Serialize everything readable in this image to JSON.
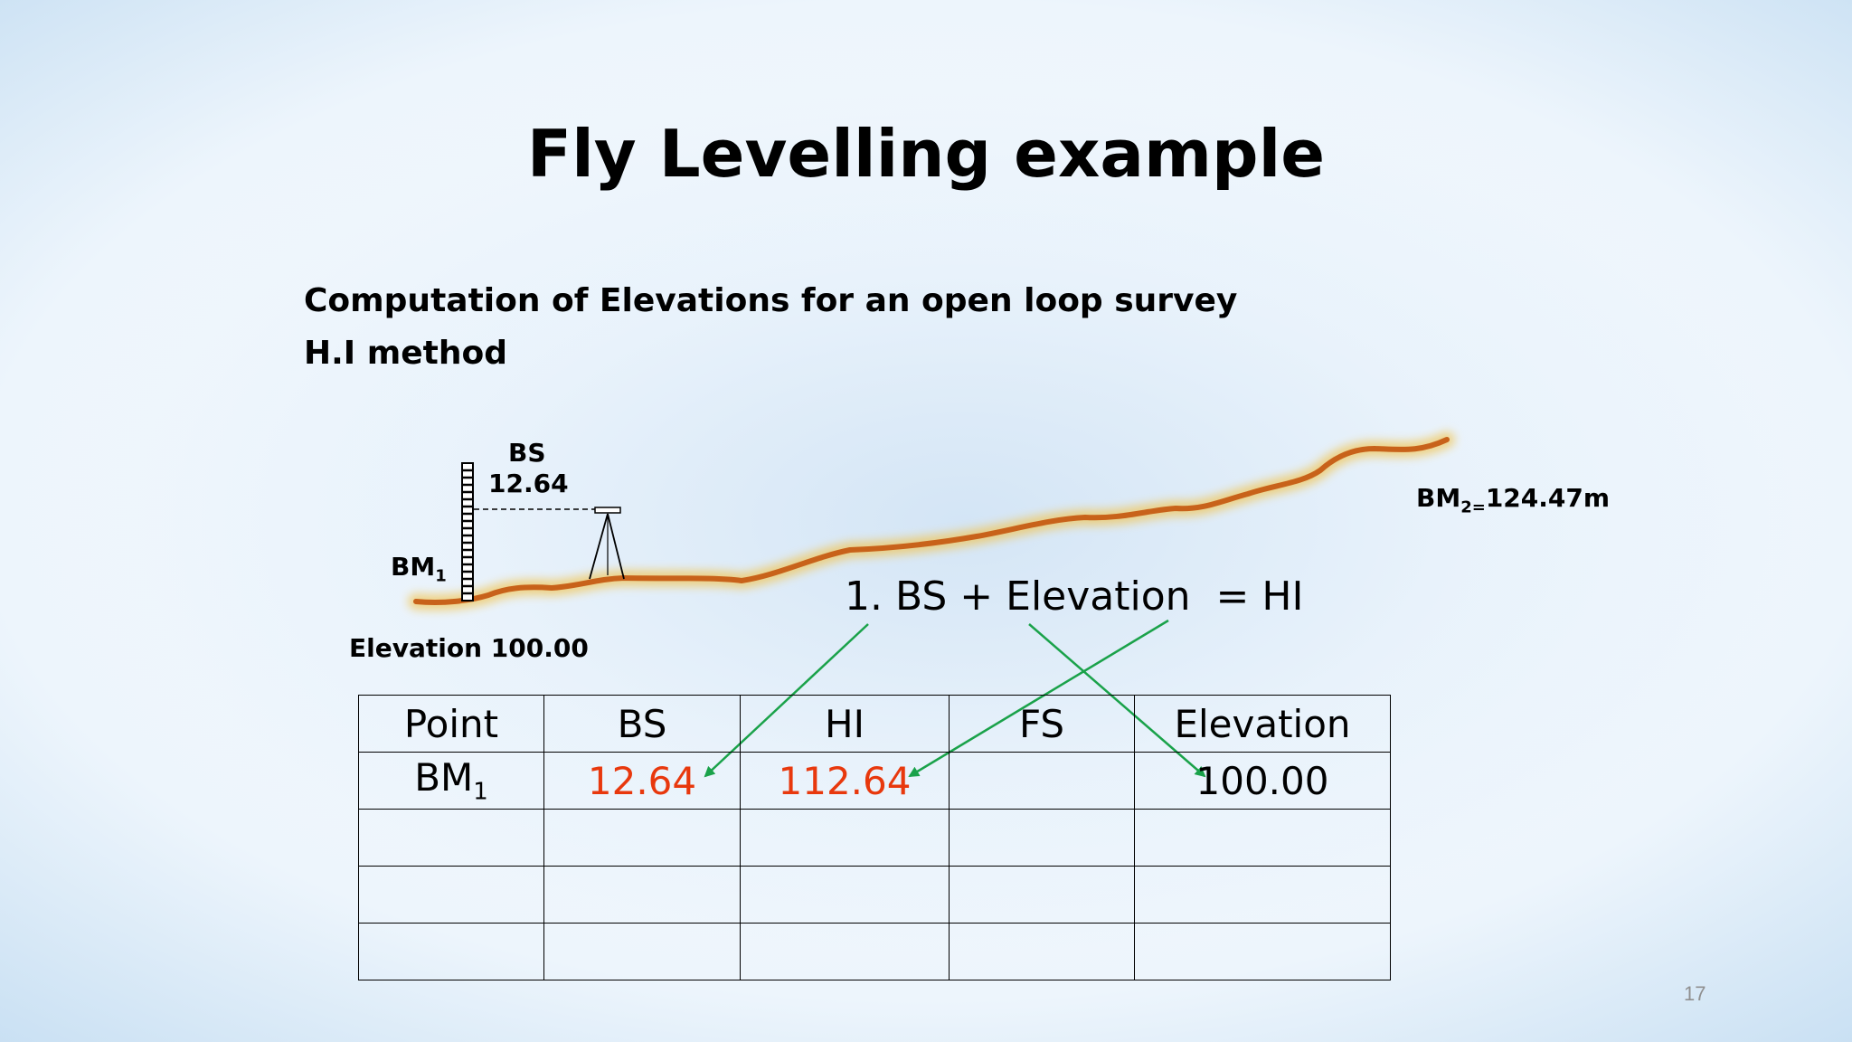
{
  "title": "Fly Levelling example",
  "subtitle_line1": "Computation of Elevations for an open loop survey",
  "subtitle_line2": "H.I method",
  "diagram": {
    "bs_label": "BS",
    "bs_value": "12.64",
    "bm1_label": "BM",
    "bm1_sub": "1",
    "elevation_label": "Elevation 100.00",
    "bm2_label": "BM",
    "bm2_sub": "2=",
    "bm2_value": "124.47m",
    "ground_color": "#c8621a"
  },
  "equation": "1. BS + Elevation  = HI",
  "table": {
    "headers": [
      "Point",
      "BS",
      "HI",
      "FS",
      "Elevation"
    ],
    "rows": [
      {
        "point": "BM",
        "point_sub": "1",
        "bs": "12.64",
        "hi": "112.64",
        "fs": "",
        "elevation": "100.00"
      },
      {
        "point": "",
        "point_sub": "",
        "bs": "",
        "hi": "",
        "fs": "",
        "elevation": ""
      },
      {
        "point": "",
        "point_sub": "",
        "bs": "",
        "hi": "",
        "fs": "",
        "elevation": ""
      },
      {
        "point": "",
        "point_sub": "",
        "bs": "",
        "hi": "",
        "fs": "",
        "elevation": ""
      }
    ]
  },
  "highlight_color": "#e8380d",
  "arrow_color": "#1aa24a",
  "page_number": "17"
}
